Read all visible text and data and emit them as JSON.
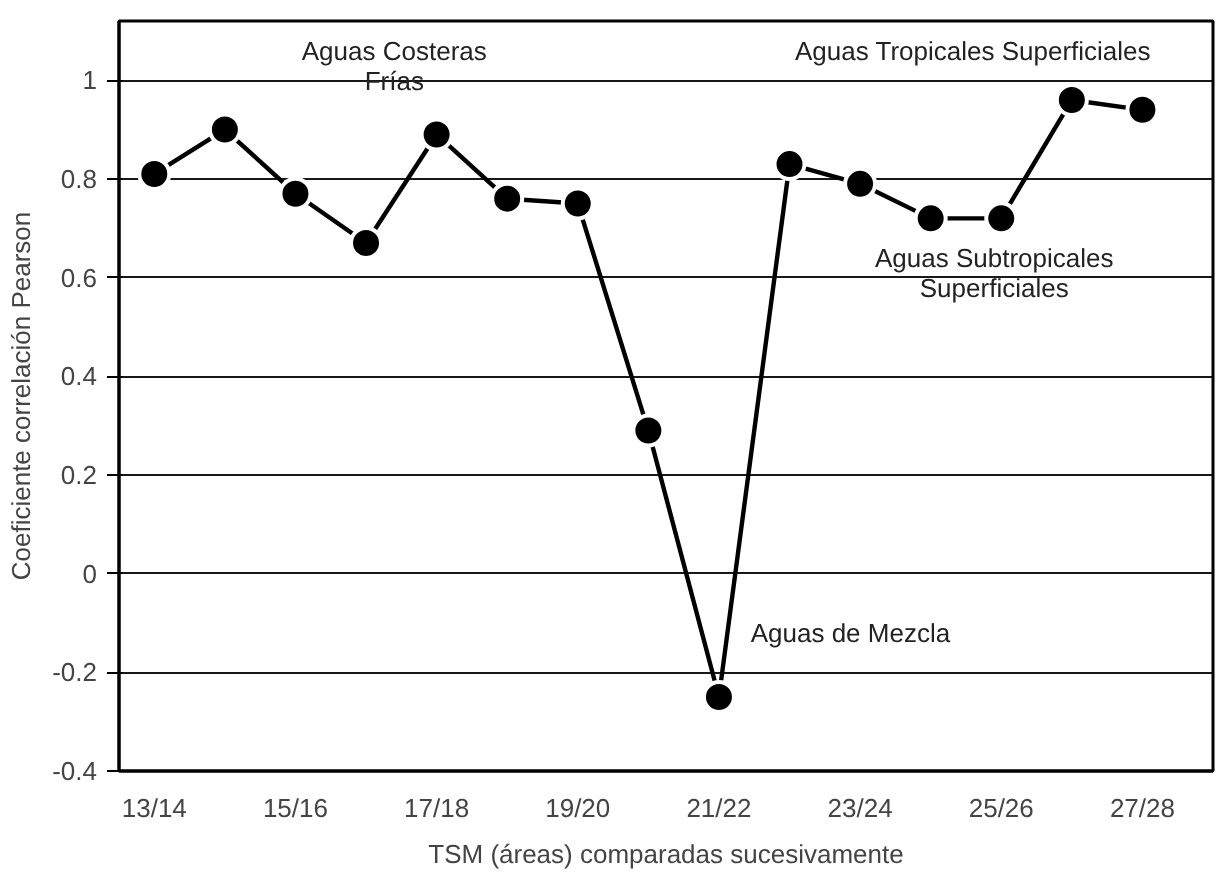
{
  "chart_data": {
    "type": "line",
    "xlabel": "TSM (áreas) comparadas sucesivamente",
    "ylabel": "Coeficiente correlación Pearson",
    "categories": [
      "13/14",
      null,
      "15/16",
      null,
      "17/18",
      null,
      "19/20",
      null,
      "21/22",
      null,
      "23/24",
      null,
      "25/26",
      null,
      "27/28"
    ],
    "series": [
      {
        "color": "#000000",
        "values": [
          0.81,
          0.9,
          0.77,
          0.67,
          0.89,
          0.76,
          0.75,
          0.29,
          -0.25,
          0.83,
          0.79,
          0.72,
          0.72,
          0.96,
          0.94
        ]
      }
    ],
    "ylim": [
      -0.4,
      1.12
    ],
    "yticks": [
      -0.4,
      -0.2,
      0,
      0.2,
      0.4,
      0.6,
      0.8,
      1
    ],
    "grid": "y",
    "marker": "circle",
    "line_style": "solid",
    "annotations": [
      "Aguas Costeras\nFrías",
      "Aguas de Mezcla",
      "Aguas Subtropicales\nSuperficiales",
      "Aguas Tropicales Superficiales"
    ]
  }
}
